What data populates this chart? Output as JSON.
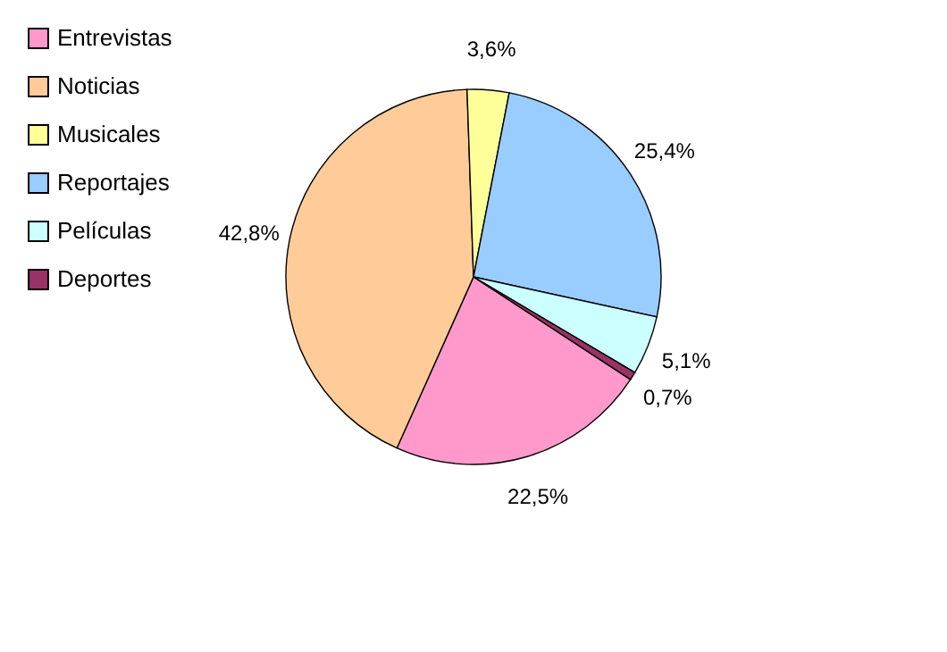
{
  "chart_data": {
    "type": "pie",
    "categories": [
      "Entrevistas",
      "Noticias",
      "Musicales",
      "Reportajes",
      "Películas",
      "Deportes"
    ],
    "values": [
      22.5,
      42.8,
      3.6,
      25.4,
      5.1,
      0.7
    ],
    "colors": [
      "#ff99cc",
      "#ffcc99",
      "#ffff99",
      "#99ccff",
      "#ccffff",
      "#993366"
    ],
    "value_labels": [
      "22,5%",
      "42,8%",
      "3,6%",
      "25,4%",
      "5,1%",
      "0,7%"
    ],
    "legend": "left"
  }
}
